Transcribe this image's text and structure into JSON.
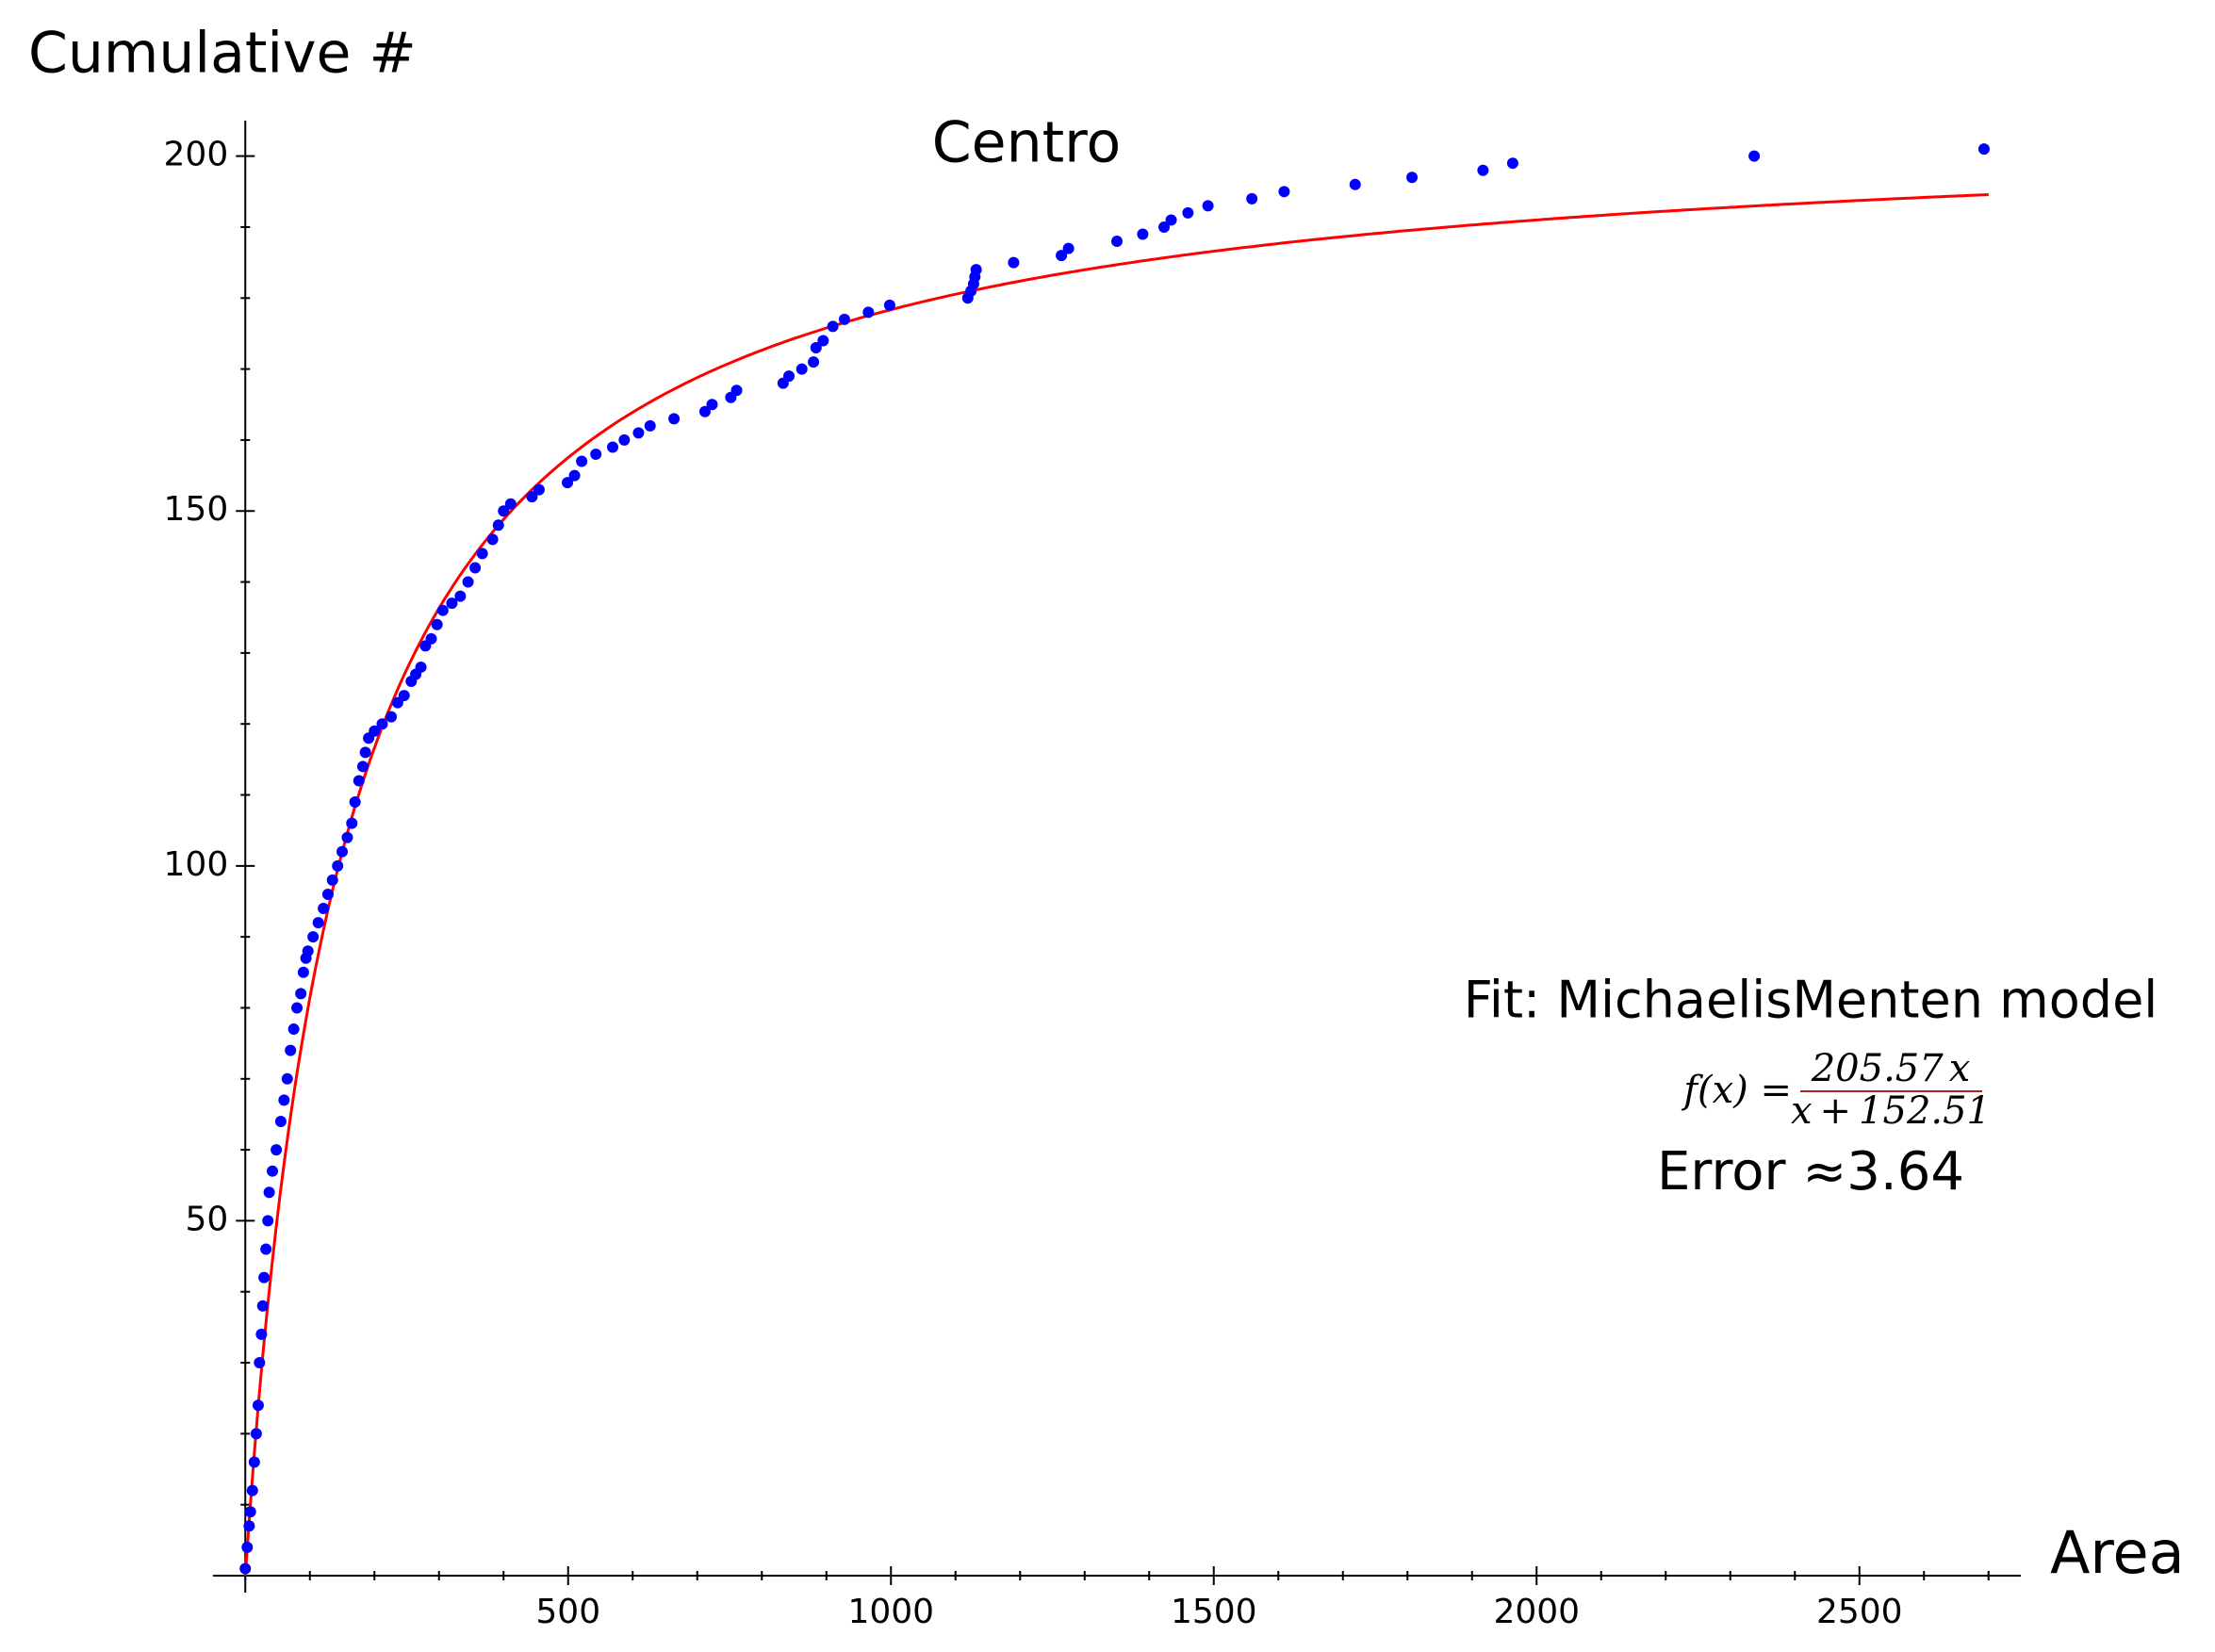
{
  "chart_data": {
    "type": "scatter",
    "title": "Centro",
    "y_label": "Cumulative #",
    "x_label": "Area",
    "xlim": [
      -50,
      2750
    ],
    "ylim": [
      0,
      205
    ],
    "xticks": [
      500,
      1000,
      1500,
      2000,
      2500
    ],
    "yticks": [
      50,
      100,
      150,
      200
    ],
    "xminorticks": [
      0,
      100,
      200,
      300,
      400,
      600,
      700,
      800,
      900,
      1100,
      1200,
      1300,
      1400,
      1600,
      1700,
      1800,
      1900,
      2100,
      2200,
      2300,
      2400,
      2600,
      2700
    ],
    "yminorticks": [
      10,
      20,
      30,
      40,
      60,
      70,
      80,
      90,
      110,
      120,
      130,
      140,
      160,
      170,
      180,
      190
    ],
    "series": [
      {
        "name": "data",
        "color": "#0000ff",
        "x": [
          0,
          3,
          6,
          8,
          11,
          14,
          17,
          20,
          22,
          25,
          27,
          29,
          32,
          35,
          37,
          42,
          48,
          55,
          60,
          65,
          70,
          75,
          80,
          86,
          90,
          94,
          97,
          105,
          113,
          121,
          128,
          135,
          143,
          150,
          158,
          165,
          170,
          176,
          182,
          186,
          191,
          200,
          212,
          226,
          236,
          246,
          257,
          264,
          272,
          279,
          288,
          297,
          306,
          320,
          333,
          345,
          356,
          367,
          383,
          392,
          400,
          411,
          444,
          455,
          499,
          510,
          521,
          543,
          569,
          587,
          609,
          627,
          664,
          712,
          723,
          752,
          761,
          833,
          842,
          862,
          880,
          884,
          895,
          910,
          928,
          965,
          998,
          1119,
          1124,
          1128,
          1130,
          1132,
          1190,
          1264,
          1275,
          1350,
          1390,
          1423,
          1434,
          1460,
          1491,
          1559,
          1609,
          1719,
          1807,
          1917,
          1963,
          2337,
          2693
        ],
        "values": [
          1,
          4,
          7,
          9,
          12,
          16,
          20,
          24,
          30,
          34,
          38,
          42,
          46,
          50,
          54,
          57,
          60,
          64,
          67,
          70,
          74,
          77,
          80,
          82,
          85,
          87,
          88,
          90,
          92,
          94,
          96,
          98,
          100,
          102,
          104,
          106,
          109,
          112,
          114,
          116,
          118,
          119,
          120,
          121,
          123,
          124,
          126,
          127,
          128,
          131,
          132,
          134,
          136,
          137,
          138,
          140,
          142,
          144,
          146,
          148,
          150,
          151,
          152,
          153,
          154,
          155,
          157,
          158,
          159,
          160,
          161,
          162,
          163,
          164,
          165,
          166,
          167,
          168,
          169,
          170,
          171,
          173,
          174,
          176,
          177,
          178,
          179,
          180,
          181,
          182,
          183,
          184,
          185,
          186,
          187,
          188,
          189,
          190,
          191,
          192,
          193,
          194,
          195,
          196,
          197,
          198,
          199,
          200,
          201
        ]
      }
    ],
    "fit": {
      "label": "Fit: MichaelisMenten model",
      "color": "#ff0000",
      "a": 205.57,
      "b": 152.51,
      "xmax": 2700,
      "formula_color": "#b22222",
      "lhs": "f(x) =",
      "var": "x",
      "plus": "+"
    },
    "error_label": "Error ≈",
    "error": 3.64,
    "error_color": "#ff00ff"
  }
}
